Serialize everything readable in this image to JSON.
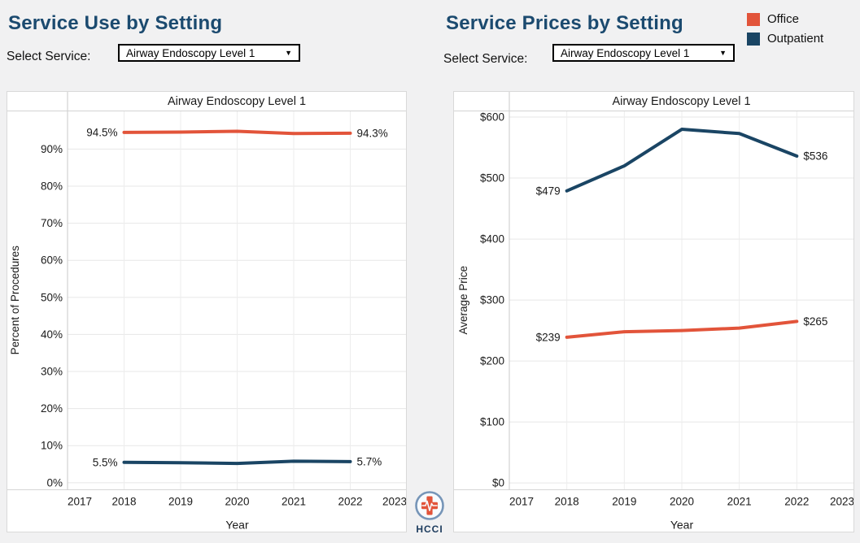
{
  "page": {
    "background": "#F1F1F2"
  },
  "colors": {
    "office": "#E2543A",
    "outpatient": "#1A4564",
    "heading": "#1B4A6F"
  },
  "left_section": {
    "title": "Service Use by Setting",
    "select_label": "Select Service:",
    "select_value": "Airway Endoscopy Level 1"
  },
  "right_section": {
    "title": "Service Prices by Setting",
    "select_label": "Select Service:",
    "select_value": "Airway Endoscopy Level 1"
  },
  "legend": {
    "items": [
      {
        "label": "Office",
        "color": "#E2543A"
      },
      {
        "label": "Outpatient",
        "color": "#1A4564"
      }
    ]
  },
  "logo": {
    "text": "HCCI"
  },
  "chart_data": [
    {
      "type": "line",
      "title": "Airway Endoscopy Level 1",
      "xlabel": "Year",
      "ylabel": "Percent of Procedures",
      "x": [
        2018,
        2019,
        2020,
        2021,
        2022
      ],
      "xlim": [
        2017,
        2023
      ],
      "ylim": [
        -1.9,
        100.4
      ],
      "grid": true,
      "legend_position": "top-right-of-page",
      "xticks": [
        {
          "v": 2017,
          "label": "2017"
        },
        {
          "v": 2018,
          "label": "2018"
        },
        {
          "v": 2019,
          "label": "2019"
        },
        {
          "v": 2020,
          "label": "2020"
        },
        {
          "v": 2021,
          "label": "2021"
        },
        {
          "v": 2022,
          "label": "2022"
        },
        {
          "v": 2023,
          "label": "2023"
        }
      ],
      "yticks": [
        {
          "v": 0,
          "label": "0%"
        },
        {
          "v": 10,
          "label": "10%"
        },
        {
          "v": 20,
          "label": "20%"
        },
        {
          "v": 30,
          "label": "30%"
        },
        {
          "v": 40,
          "label": "40%"
        },
        {
          "v": 50,
          "label": "50%"
        },
        {
          "v": 60,
          "label": "60%"
        },
        {
          "v": 70,
          "label": "70%"
        },
        {
          "v": 80,
          "label": "80%"
        },
        {
          "v": 90,
          "label": "90%"
        }
      ],
      "series": [
        {
          "name": "Office",
          "color": "#E2543A",
          "values": [
            94.5,
            94.6,
            94.8,
            94.2,
            94.3
          ],
          "first_label": "94.5%",
          "last_label": "94.3%"
        },
        {
          "name": "Outpatient",
          "color": "#1A4564",
          "values": [
            5.5,
            5.4,
            5.2,
            5.8,
            5.7
          ],
          "first_label": "5.5%",
          "last_label": "5.7%"
        }
      ]
    },
    {
      "type": "line",
      "title": "Airway Endoscopy Level 1",
      "xlabel": "Year",
      "ylabel": "Average Price",
      "x": [
        2018,
        2019,
        2020,
        2021,
        2022
      ],
      "xlim": [
        2017,
        2023
      ],
      "ylim": [
        -11.1,
        610.7
      ],
      "grid": true,
      "xticks": [
        {
          "v": 2017,
          "label": "2017"
        },
        {
          "v": 2018,
          "label": "2018"
        },
        {
          "v": 2019,
          "label": "2019"
        },
        {
          "v": 2020,
          "label": "2020"
        },
        {
          "v": 2021,
          "label": "2021"
        },
        {
          "v": 2022,
          "label": "2022"
        },
        {
          "v": 2023,
          "label": "2023"
        }
      ],
      "yticks": [
        {
          "v": 0,
          "label": "$0"
        },
        {
          "v": 100,
          "label": "$100"
        },
        {
          "v": 200,
          "label": "$200"
        },
        {
          "v": 300,
          "label": "$300"
        },
        {
          "v": 400,
          "label": "$400"
        },
        {
          "v": 500,
          "label": "$500"
        },
        {
          "v": 600,
          "label": "$600"
        }
      ],
      "series": [
        {
          "name": "Outpatient",
          "color": "#1A4564",
          "values": [
            479,
            520,
            580,
            573,
            536
          ],
          "first_label": "$479",
          "last_label": "$536"
        },
        {
          "name": "Office",
          "color": "#E2543A",
          "values": [
            239,
            248,
            250,
            254,
            265
          ],
          "first_label": "$239",
          "last_label": "$265"
        }
      ]
    }
  ]
}
